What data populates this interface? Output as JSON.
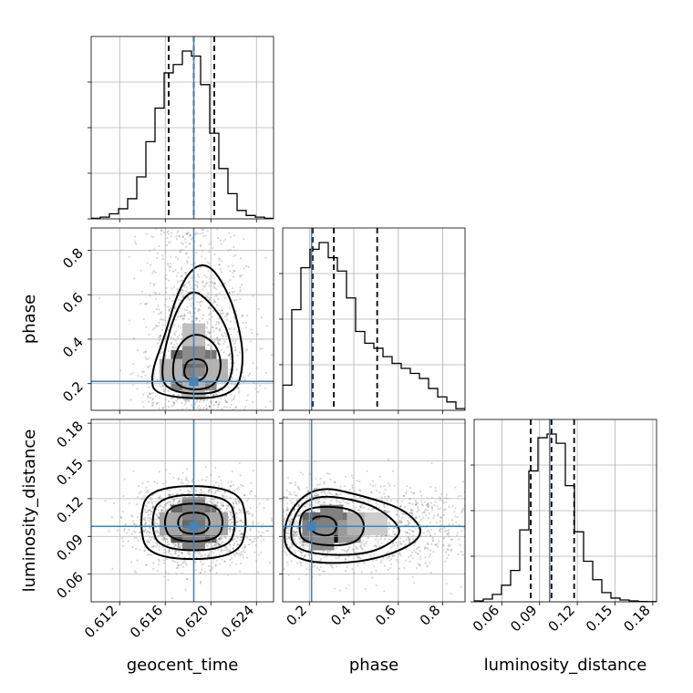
{
  "chart_data": {
    "type": "corner",
    "parameters": [
      "geocent_time",
      "phase",
      "luminosity_distance"
    ],
    "truths": {
      "geocent_time": 0.6185,
      "phase": 0.21,
      "luminosity_distance": 0.098
    },
    "quantiles": {
      "geocent_time": [
        0.6163,
        0.6185,
        0.6203
      ],
      "phase": [
        0.215,
        0.31,
        0.505
      ],
      "luminosity_distance": [
        0.083,
        0.0995,
        0.1175
      ]
    },
    "ranges": {
      "geocent_time": [
        0.6095,
        0.6255
      ],
      "phase": [
        0.08,
        0.9
      ],
      "luminosity_distance": [
        0.038,
        0.183
      ]
    },
    "ticks": {
      "geocent_time": {
        "values": [
          0.612,
          0.616,
          0.62,
          0.624
        ],
        "labels": [
          "0.612",
          "0.616",
          "0.620",
          "0.624"
        ]
      },
      "phase": {
        "values": [
          0.2,
          0.4,
          0.6,
          0.8
        ],
        "labels": [
          "0.2",
          "0.4",
          "0.6",
          "0.8"
        ]
      },
      "luminosity_distance": {
        "values": [
          0.06,
          0.09,
          0.12,
          0.15,
          0.18
        ],
        "labels": [
          "0.06",
          "0.09",
          "0.12",
          "0.15",
          "0.18"
        ]
      }
    },
    "histograms": {
      "geocent_time": {
        "bin_edges": [
          0.6095,
          0.6103,
          0.6111,
          0.6119,
          0.6127,
          0.6135,
          0.6143,
          0.6151,
          0.6159,
          0.6167,
          0.6175,
          0.6183,
          0.6191,
          0.6199,
          0.6207,
          0.6215,
          0.6223,
          0.6231,
          0.6239,
          0.6247,
          0.6255
        ],
        "counts": [
          0.3,
          1,
          3,
          6,
          12,
          25,
          46,
          66,
          87,
          92,
          100,
          97,
          80,
          51,
          30,
          15,
          5,
          2,
          1,
          0.3
        ]
      },
      "phase": {
        "bin_edges": [
          0.08,
          0.121,
          0.162,
          0.203,
          0.244,
          0.285,
          0.326,
          0.367,
          0.408,
          0.449,
          0.49,
          0.531,
          0.572,
          0.613,
          0.654,
          0.695,
          0.736,
          0.777,
          0.818,
          0.859,
          0.9
        ],
        "counts": [
          15,
          60,
          85,
          96,
          100,
          91,
          83,
          67,
          47,
          40,
          37,
          32,
          28,
          25,
          22,
          19,
          13,
          8,
          5,
          1
        ]
      },
      "luminosity_distance": {
        "bin_edges": [
          0.038,
          0.04525,
          0.0525,
          0.05975,
          0.067,
          0.07425,
          0.0815,
          0.08875,
          0.096,
          0.10325,
          0.1105,
          0.11775,
          0.125,
          0.13225,
          0.1395,
          0.14675,
          0.154,
          0.16125,
          0.1685,
          0.17575,
          0.183
        ],
        "counts": [
          0.5,
          1.5,
          4,
          9,
          17,
          39,
          71,
          89,
          91,
          86,
          63,
          38,
          22,
          12,
          5,
          2,
          1,
          0.5,
          0.2,
          0.1
        ]
      }
    },
    "grid": true,
    "density_cells": {
      "phase_vs_geocent_time": [
        {
          "x": 0.6185,
          "y": 0.26,
          "w": 0.86
        },
        {
          "x": 0.6175,
          "y": 0.3,
          "w": 0.6
        },
        {
          "x": 0.6195,
          "y": 0.3,
          "w": 0.55
        },
        {
          "x": 0.6185,
          "y": 0.34,
          "w": 0.45
        },
        {
          "x": 0.6175,
          "y": 0.22,
          "w": 0.5
        },
        {
          "x": 0.6195,
          "y": 0.22,
          "w": 0.45
        },
        {
          "x": 0.6165,
          "y": 0.26,
          "w": 0.3
        },
        {
          "x": 0.6205,
          "y": 0.26,
          "w": 0.3
        },
        {
          "x": 0.6185,
          "y": 0.42,
          "w": 0.25
        },
        {
          "x": 0.6185,
          "y": 0.18,
          "w": 0.3
        }
      ],
      "luminosity_distance_vs_geocent_time": [
        {
          "x": 0.6185,
          "y": 0.1,
          "w": 0.9
        },
        {
          "x": 0.6175,
          "y": 0.094,
          "w": 0.65
        },
        {
          "x": 0.6195,
          "y": 0.094,
          "w": 0.6
        },
        {
          "x": 0.6175,
          "y": 0.106,
          "w": 0.6
        },
        {
          "x": 0.6195,
          "y": 0.106,
          "w": 0.55
        },
        {
          "x": 0.6185,
          "y": 0.088,
          "w": 0.5
        },
        {
          "x": 0.6185,
          "y": 0.112,
          "w": 0.5
        },
        {
          "x": 0.6165,
          "y": 0.1,
          "w": 0.35
        },
        {
          "x": 0.6205,
          "y": 0.1,
          "w": 0.35
        }
      ],
      "luminosity_distance_vs_phase": [
        {
          "x": 0.26,
          "y": 0.1,
          "w": 0.85
        },
        {
          "x": 0.3,
          "y": 0.094,
          "w": 0.95
        },
        {
          "x": 0.22,
          "y": 0.1,
          "w": 0.6
        },
        {
          "x": 0.34,
          "y": 0.1,
          "w": 0.55
        },
        {
          "x": 0.3,
          "y": 0.106,
          "w": 0.5
        },
        {
          "x": 0.38,
          "y": 0.094,
          "w": 0.4
        },
        {
          "x": 0.42,
          "y": 0.1,
          "w": 0.3
        },
        {
          "x": 0.22,
          "y": 0.094,
          "w": 0.5
        },
        {
          "x": 0.5,
          "y": 0.1,
          "w": 0.2
        },
        {
          "x": 0.26,
          "y": 0.088,
          "w": 0.45
        }
      ]
    },
    "contours": {
      "phase_vs_geocent_time": [
        [
          [
            0.6178,
            0.22
          ],
          [
            0.6192,
            0.21
          ],
          [
            0.6198,
            0.26
          ],
          [
            0.6194,
            0.31
          ],
          [
            0.618,
            0.31
          ],
          [
            0.6176,
            0.26
          ]
        ],
        [
          [
            0.6168,
            0.18
          ],
          [
            0.62,
            0.17
          ],
          [
            0.621,
            0.26
          ],
          [
            0.6206,
            0.37
          ],
          [
            0.619,
            0.43
          ],
          [
            0.6175,
            0.4
          ],
          [
            0.6166,
            0.3
          ]
        ],
        [
          [
            0.616,
            0.16
          ],
          [
            0.621,
            0.15
          ],
          [
            0.6221,
            0.27
          ],
          [
            0.6215,
            0.45
          ],
          [
            0.6199,
            0.57
          ],
          [
            0.6183,
            0.63
          ],
          [
            0.6168,
            0.52
          ],
          [
            0.6156,
            0.28
          ]
        ],
        [
          [
            0.6151,
            0.14
          ],
          [
            0.622,
            0.13
          ],
          [
            0.623,
            0.3
          ],
          [
            0.6222,
            0.52
          ],
          [
            0.621,
            0.66
          ],
          [
            0.6197,
            0.74
          ],
          [
            0.6183,
            0.72
          ],
          [
            0.617,
            0.6
          ],
          [
            0.616,
            0.42
          ],
          [
            0.6147,
            0.24
          ]
        ]
      ],
      "luminosity_distance_vs_geocent_time": [
        [
          [
            0.6175,
            0.092
          ],
          [
            0.6195,
            0.092
          ],
          [
            0.62,
            0.101
          ],
          [
            0.6195,
            0.109
          ],
          [
            0.6175,
            0.109
          ],
          [
            0.617,
            0.101
          ]
        ],
        [
          [
            0.6165,
            0.086
          ],
          [
            0.6205,
            0.086
          ],
          [
            0.6212,
            0.101
          ],
          [
            0.6205,
            0.116
          ],
          [
            0.6165,
            0.116
          ],
          [
            0.6158,
            0.101
          ]
        ],
        [
          [
            0.6155,
            0.079
          ],
          [
            0.6215,
            0.079
          ],
          [
            0.6223,
            0.101
          ],
          [
            0.6215,
            0.123
          ],
          [
            0.6155,
            0.123
          ],
          [
            0.6147,
            0.101
          ]
        ],
        [
          [
            0.6145,
            0.072
          ],
          [
            0.6223,
            0.072
          ],
          [
            0.6233,
            0.101
          ],
          [
            0.6223,
            0.13
          ],
          [
            0.6145,
            0.13
          ],
          [
            0.6137,
            0.101
          ]
        ]
      ],
      "luminosity_distance_vs_phase": [
        [
          [
            0.22,
            0.092
          ],
          [
            0.3,
            0.09
          ],
          [
            0.33,
            0.098
          ],
          [
            0.3,
            0.106
          ],
          [
            0.22,
            0.106
          ],
          [
            0.2,
            0.099
          ]
        ],
        [
          [
            0.17,
            0.084
          ],
          [
            0.4,
            0.082
          ],
          [
            0.46,
            0.098
          ],
          [
            0.4,
            0.113
          ],
          [
            0.18,
            0.114
          ],
          [
            0.15,
            0.099
          ]
        ],
        [
          [
            0.13,
            0.077
          ],
          [
            0.45,
            0.074
          ],
          [
            0.62,
            0.09
          ],
          [
            0.58,
            0.104
          ],
          [
            0.45,
            0.118
          ],
          [
            0.2,
            0.124
          ],
          [
            0.11,
            0.1
          ]
        ],
        [
          [
            0.1,
            0.07
          ],
          [
            0.45,
            0.068
          ],
          [
            0.73,
            0.088
          ],
          [
            0.65,
            0.11
          ],
          [
            0.45,
            0.122
          ],
          [
            0.22,
            0.131
          ],
          [
            0.08,
            0.104
          ]
        ]
      ]
    }
  }
}
